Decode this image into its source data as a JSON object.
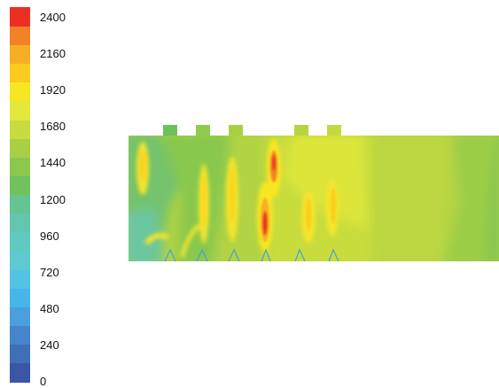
{
  "chart_data": {
    "type": "heatmap",
    "title": "",
    "colorbar": {
      "ticks": [
        "2400",
        "2160",
        "1920",
        "1680",
        "1440",
        "1200",
        "960",
        "720",
        "480",
        "240",
        "0"
      ],
      "range": [
        0,
        2400
      ],
      "levels": 20,
      "colors": [
        "#3c56a6",
        "#3f6fb7",
        "#4585cb",
        "#4a9fdc",
        "#46b6e8",
        "#52c3e2",
        "#5ec8d3",
        "#62c9c0",
        "#64c6ac",
        "#66c492",
        "#6fc25d",
        "#8cc84e",
        "#a8d044",
        "#c6dc3f",
        "#e4e83a",
        "#f9e622",
        "#fbcc1f",
        "#f7ae24",
        "#f28228",
        "#ec2f24"
      ]
    },
    "domain": {
      "inlet_tabs": 6,
      "burner_jets": 6,
      "background_value_range": [
        960,
        1680
      ],
      "hot_spot_peak": 2400
    }
  }
}
